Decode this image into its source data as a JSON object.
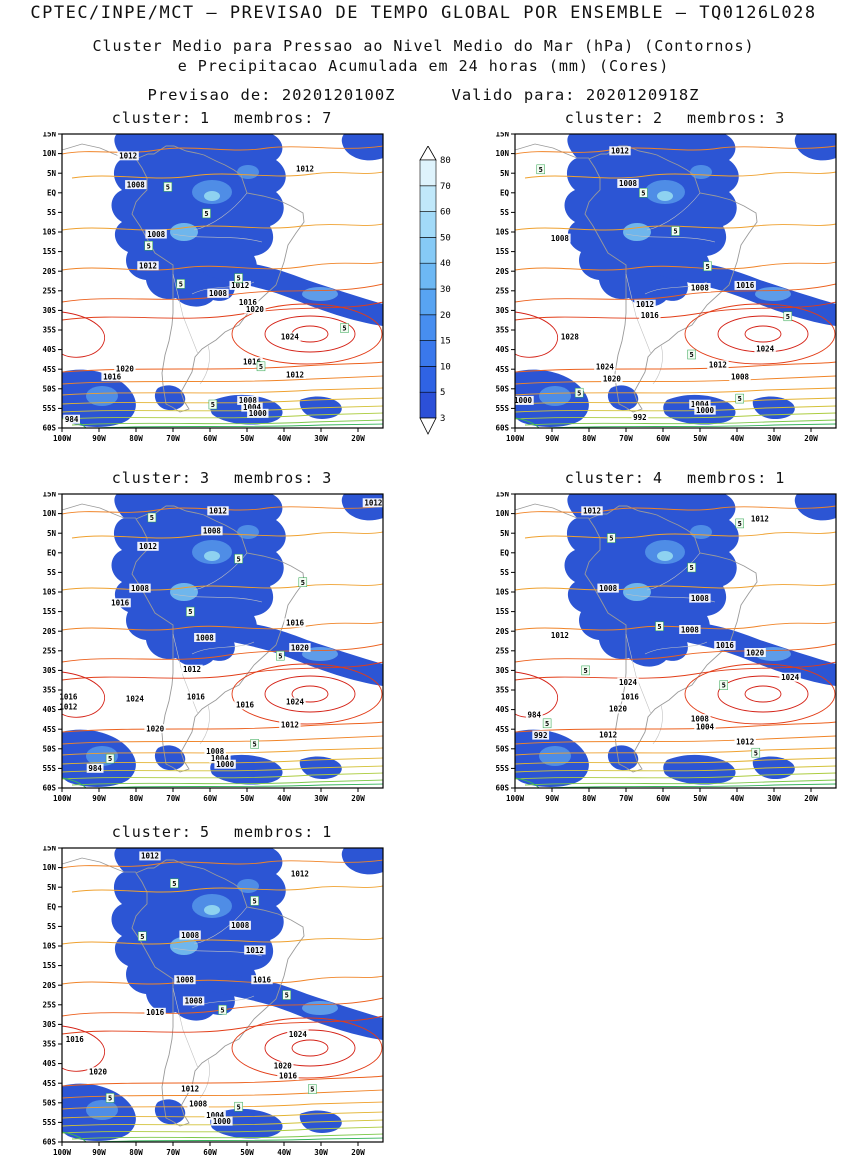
{
  "header": {
    "title": "CPTEC/INPE/MCT — PREVISAO DE TEMPO GLOBAL POR ENSEMBLE — TQ0126L028",
    "subtitle1": "Cluster Medio para Pressao ao Nivel Medio do Mar (hPa) (Contornos)",
    "subtitle2": "e Precipitacao Acumulada em 24 horas (mm) (Cores)",
    "issued_label": "Previsao de:",
    "issued_value": "2020120100Z",
    "valid_label": "Valido para:",
    "valid_value": "2020120918Z"
  },
  "labels": {
    "cluster_label": "cluster:",
    "membros_label": "membros:",
    "precip_label_value": "5"
  },
  "axes": {
    "lat_ticks": [
      "15N",
      "10N",
      "5N",
      "EQ",
      "5S",
      "10S",
      "15S",
      "20S",
      "25S",
      "30S",
      "35S",
      "40S",
      "45S",
      "50S",
      "55S",
      "60S"
    ],
    "lon_ticks": [
      "100W",
      "90W",
      "80W",
      "70W",
      "60W",
      "50W",
      "40W",
      "30W",
      "20W"
    ]
  },
  "colorbar": {
    "levels": [
      "3",
      "5",
      "10",
      "15",
      "20",
      "30",
      "40",
      "50",
      "60",
      "70",
      "80"
    ],
    "colors": [
      "#2c50d8",
      "#2f63e4",
      "#3a78ec",
      "#478ef0",
      "#58a4f2",
      "#6db8f4",
      "#86caf6",
      "#a2daf8",
      "#c0e8fa",
      "#def3fc"
    ]
  },
  "map_colors": {
    "precip_base": "#2c55d4",
    "coast": "#9a9a9a",
    "border": "#c2c2c2"
  },
  "panels": [
    {
      "cluster": "1",
      "membros": "7",
      "pressure_labels": [
        [
          "1012",
          20.6,
          7.4
        ],
        [
          "1008",
          23,
          17.2
        ],
        [
          "1012",
          75.7,
          11.8
        ],
        [
          "1008",
          29.3,
          34
        ],
        [
          "1012",
          26.8,
          44.8
        ],
        [
          "1008",
          48.6,
          54.2
        ],
        [
          "1012",
          55.5,
          51.5
        ],
        [
          "1016",
          57.9,
          57.2
        ],
        [
          "1020",
          60.1,
          59.6
        ],
        [
          "1024",
          71,
          69
        ],
        [
          "1016",
          59.2,
          77.4
        ],
        [
          "1020",
          19.6,
          79.8
        ],
        [
          "1016",
          15.6,
          82.5
        ],
        [
          "1012",
          72.6,
          81.8
        ],
        [
          "1008",
          57.9,
          90.6
        ],
        [
          "1004",
          59.2,
          92.9
        ],
        [
          "1000",
          61,
          95
        ],
        [
          "984",
          3,
          97
        ]
      ],
      "precip_labels": [
        [
          33,
          18
        ],
        [
          45,
          27
        ],
        [
          27,
          38
        ],
        [
          55,
          49
        ],
        [
          88,
          66
        ],
        [
          62,
          79
        ],
        [
          47,
          92
        ],
        [
          37,
          51
        ]
      ]
    },
    {
      "cluster": "2",
      "membros": "3",
      "pressure_labels": [
        [
          "1012",
          32.7,
          5.7
        ],
        [
          "1008",
          35.2,
          16.8
        ],
        [
          "1008",
          14,
          35.4
        ],
        [
          "1016",
          71.7,
          51.5
        ],
        [
          "1008",
          57.6,
          52.2
        ],
        [
          "1012",
          40.5,
          57.9
        ],
        [
          "1016",
          42,
          61.6
        ],
        [
          "1028",
          17.1,
          69
        ],
        [
          "1024",
          77.9,
          73
        ],
        [
          "1012",
          63.2,
          78.5
        ],
        [
          "1008",
          70.1,
          82.5
        ],
        [
          "1024",
          28,
          79.1
        ],
        [
          "1020",
          30.2,
          83.2
        ],
        [
          "1004",
          57.6,
          91.9
        ],
        [
          "1000",
          59.2,
          93.9
        ],
        [
          "1000",
          2.5,
          90.6
        ],
        [
          "992",
          38.9,
          96.3
        ]
      ],
      "precip_labels": [
        [
          8,
          12
        ],
        [
          40,
          20
        ],
        [
          50,
          33
        ],
        [
          60,
          45
        ],
        [
          85,
          62
        ],
        [
          20,
          88
        ],
        [
          70,
          90
        ],
        [
          55,
          75
        ]
      ]
    },
    {
      "cluster": "3",
      "membros": "3",
      "pressure_labels": [
        [
          "1012",
          97,
          3
        ],
        [
          "1012",
          48.6,
          5.7
        ],
        [
          "1008",
          46.7,
          12.5
        ],
        [
          "1012",
          26.8,
          17.8
        ],
        [
          "1008",
          24.3,
          32
        ],
        [
          "1016",
          18.1,
          37
        ],
        [
          "1008",
          44.5,
          48.8
        ],
        [
          "1016",
          72.6,
          43.8
        ],
        [
          "1020",
          74.1,
          52.2
        ],
        [
          "1012",
          40.5,
          59.6
        ],
        [
          "1016",
          41.7,
          69
        ],
        [
          "1024",
          22.7,
          69.7
        ],
        [
          "1024",
          72.6,
          70.7
        ],
        [
          "1016",
          57,
          71.7
        ],
        [
          "1016",
          2,
          69
        ],
        [
          "1012",
          2,
          72.4
        ],
        [
          "1020",
          29,
          79.8
        ],
        [
          "1012",
          71,
          78.5
        ],
        [
          "1008",
          47.7,
          87.5
        ],
        [
          "1004",
          49.2,
          89.9
        ],
        [
          "1000",
          50.8,
          91.9
        ],
        [
          "984",
          10.3,
          93.3
        ]
      ],
      "precip_labels": [
        [
          28,
          8
        ],
        [
          55,
          22
        ],
        [
          40,
          40
        ],
        [
          68,
          55
        ],
        [
          15,
          90
        ],
        [
          60,
          85
        ],
        [
          75,
          30
        ]
      ]
    },
    {
      "cluster": "4",
      "membros": "1",
      "pressure_labels": [
        [
          "1012",
          24,
          5.7
        ],
        [
          "1012",
          76.3,
          8.4
        ],
        [
          "1008",
          29,
          32
        ],
        [
          "1008",
          57.6,
          35.4
        ],
        [
          "1012",
          14,
          48.1
        ],
        [
          "1008",
          54.5,
          46.1
        ],
        [
          "1016",
          65.4,
          51.5
        ],
        [
          "1020",
          74.8,
          53.9
        ],
        [
          "1024",
          85.7,
          62.3
        ],
        [
          "1024",
          35.2,
          64
        ],
        [
          "1016",
          35.8,
          69
        ],
        [
          "1020",
          32.1,
          73.1
        ],
        [
          "1008",
          57.6,
          76.4
        ],
        [
          "1004",
          59.2,
          79.1
        ],
        [
          "1012",
          29,
          81.8
        ],
        [
          "1012",
          71.7,
          84.2
        ],
        [
          "992",
          8,
          82
        ],
        [
          "984",
          6,
          75
        ]
      ],
      "precip_labels": [
        [
          30,
          15
        ],
        [
          55,
          25
        ],
        [
          70,
          10
        ],
        [
          45,
          45
        ],
        [
          65,
          65
        ],
        [
          10,
          78
        ],
        [
          75,
          88
        ],
        [
          22,
          60
        ]
      ]
    },
    {
      "cluster": "5",
      "membros": "1",
      "pressure_labels": [
        [
          "1012",
          27.4,
          2.7
        ],
        [
          "1012",
          74.1,
          8.8
        ],
        [
          "1008",
          39.9,
          29.6
        ],
        [
          "1008",
          55.5,
          26.3
        ],
        [
          "1012",
          60.1,
          34.7
        ],
        [
          "1016",
          62.3,
          44.8
        ],
        [
          "1008",
          38.3,
          44.8
        ],
        [
          "1016",
          29,
          55.9
        ],
        [
          "1008",
          41,
          52
        ],
        [
          "1024",
          73.5,
          63.3
        ],
        [
          "1016",
          4,
          65
        ],
        [
          "1020",
          11.2,
          76.1
        ],
        [
          "1020",
          68.8,
          74.1
        ],
        [
          "1016",
          70.4,
          77.4
        ],
        [
          "1012",
          39.9,
          81.8
        ],
        [
          "1008",
          42.4,
          86.9
        ],
        [
          "1004",
          47.7,
          90.9
        ],
        [
          "1000",
          49.8,
          92.9
        ]
      ],
      "precip_labels": [
        [
          35,
          12
        ],
        [
          60,
          18
        ],
        [
          25,
          30
        ],
        [
          50,
          55
        ],
        [
          70,
          50
        ],
        [
          15,
          85
        ],
        [
          55,
          88
        ],
        [
          78,
          82
        ]
      ]
    }
  ],
  "chart_data": {
    "type": "map-ensemble-clusters",
    "title": "CPTEC/INPE/MCT — PREVISAO DE TEMPO GLOBAL POR ENSEMBLE — TQ0126L028",
    "variable_contours": "Pressao ao Nivel Medio do Mar (hPa)",
    "variable_shading": "Precipitacao Acumulada em 24 horas (mm)",
    "init_time": "2020120100Z",
    "valid_time": "2020120918Z",
    "clusters": [
      {
        "cluster": 1,
        "membros": 7
      },
      {
        "cluster": 2,
        "membros": 3
      },
      {
        "cluster": 3,
        "membros": 3
      },
      {
        "cluster": 4,
        "membros": 1
      },
      {
        "cluster": 5,
        "membros": 1
      }
    ],
    "precip_scale_mm": [
      3,
      5,
      10,
      15,
      20,
      30,
      40,
      50,
      60,
      70,
      80
    ],
    "lon_range": [
      "100W",
      "20W"
    ],
    "lat_range": [
      "15N",
      "60S"
    ]
  }
}
